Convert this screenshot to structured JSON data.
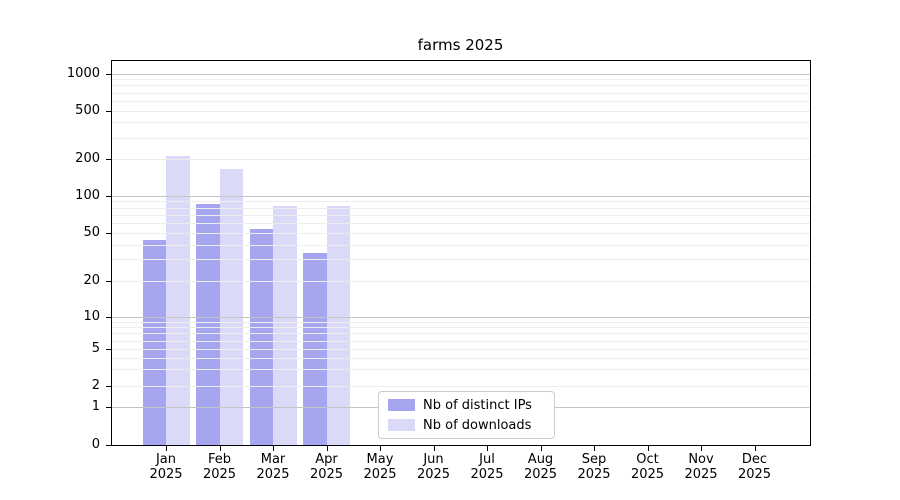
{
  "figure": {
    "title": "farms 2025"
  },
  "chart_data": {
    "type": "bar",
    "title": "farms 2025",
    "categories": [
      "Jan 2025",
      "Feb 2025",
      "Mar 2025",
      "Apr 2025",
      "May 2025",
      "Jun 2025",
      "Jul 2025",
      "Aug 2025",
      "Sep 2025",
      "Oct 2025",
      "Nov 2025",
      "Dec 2025"
    ],
    "months": [
      "Jan",
      "Feb",
      "Mar",
      "Apr",
      "May",
      "Jun",
      "Jul",
      "Aug",
      "Sep",
      "Oct",
      "Nov",
      "Dec"
    ],
    "year": "2025",
    "series": [
      {
        "name": "Nb of distinct IPs",
        "color": "#a6a6f0",
        "values": [
          44,
          85,
          54,
          34,
          null,
          null,
          null,
          null,
          null,
          null,
          null,
          null
        ]
      },
      {
        "name": "Nb of downloads",
        "color": "#dadaf8",
        "values": [
          210,
          165,
          82,
          83,
          null,
          null,
          null,
          null,
          null,
          null,
          null,
          null
        ]
      }
    ],
    "yscale": "symlog",
    "ytick_values": [
      0,
      1,
      2,
      5,
      10,
      20,
      50,
      100,
      200,
      500,
      1000
    ],
    "ylim": [
      0,
      1300
    ],
    "xlabel": "",
    "ylabel": "",
    "grid": "horizontal, major and minor",
    "legend_position": "lower center"
  },
  "legend": {
    "items": [
      "Nb of distinct IPs",
      "Nb of downloads"
    ]
  },
  "colors": {
    "ips_bar": "#a6a6f0",
    "downloads_bar": "#dadaf8",
    "grid_major": "#c4c4c4",
    "grid_minor": "#ededed",
    "spine": "#000000",
    "background": "#ffffff"
  }
}
